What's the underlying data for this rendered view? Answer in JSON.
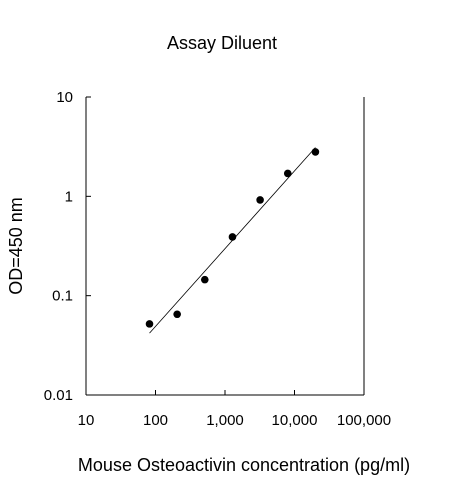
{
  "chart_data": {
    "type": "scatter",
    "title": "Assay Diluent",
    "xlabel": "Mouse Osteoactivin concentration (pg/ml)",
    "ylabel": "OD=450 nm",
    "x_scale": "log",
    "y_scale": "log",
    "xlim": [
      10,
      100000
    ],
    "ylim": [
      0.01,
      10
    ],
    "x_ticks": [
      10,
      100,
      1000,
      10000,
      100000
    ],
    "x_tick_labels": [
      "10",
      "100",
      "1,000",
      "10,000",
      "100,000"
    ],
    "y_ticks": [
      0.01,
      0.1,
      1,
      10
    ],
    "y_tick_labels": [
      "0.01",
      "0.1",
      "1",
      "10"
    ],
    "grid": false,
    "series": [
      {
        "points": [
          {
            "x": 82,
            "y": 0.052
          },
          {
            "x": 205,
            "y": 0.065
          },
          {
            "x": 512,
            "y": 0.145
          },
          {
            "x": 1280,
            "y": 0.39
          },
          {
            "x": 3200,
            "y": 0.92
          },
          {
            "x": 8000,
            "y": 1.7
          },
          {
            "x": 20000,
            "y": 2.8
          }
        ]
      }
    ],
    "fit_line": {
      "x": [
        82,
        20000
      ],
      "y": [
        0.042,
        3.1
      ]
    }
  }
}
